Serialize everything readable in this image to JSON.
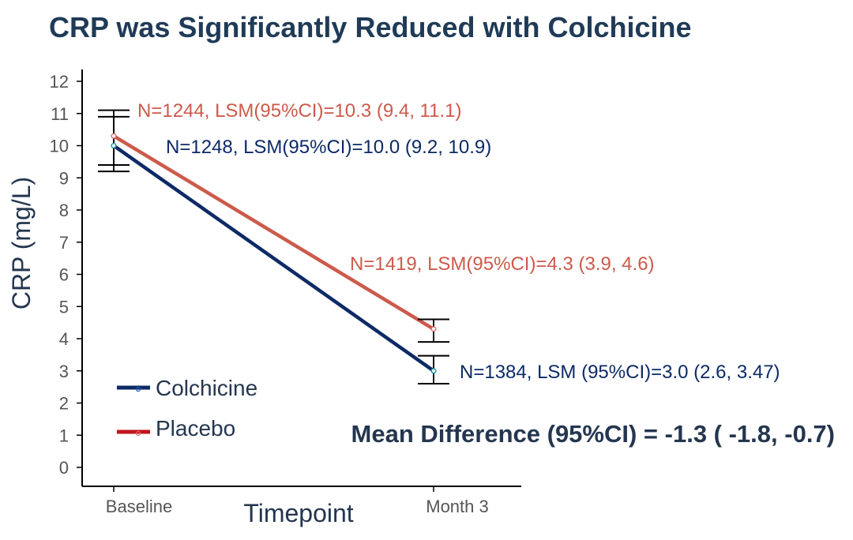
{
  "chart_data": {
    "type": "line",
    "title": "CRP was Significantly Reduced with Colchicine",
    "xlabel": "Timepoint",
    "ylabel": "CRP (mg/L)",
    "categories": [
      "Baseline",
      "Month 3"
    ],
    "ylim": [
      0,
      12
    ],
    "yticks": [
      "0",
      "1",
      "2",
      "3",
      "4",
      "5",
      "6",
      "7",
      "8",
      "9",
      "10",
      "11",
      "12"
    ],
    "grid": false,
    "legend_position": "bottom-left",
    "series": [
      {
        "name": "Colchicine",
        "color": "#0d2a66",
        "values": [
          10.0,
          3.0
        ],
        "ci_lower": [
          9.2,
          2.6
        ],
        "ci_upper": [
          10.9,
          3.47
        ],
        "annotations": [
          "N=1248, LSM(95%CI)=10.0 (9.2, 10.9)",
          "N=1384, LSM (95%CI)=3.0 (2.6, 3.47)"
        ]
      },
      {
        "name": "Placebo",
        "color": "#cc5a4b",
        "legend_color": "#c0141c",
        "values": [
          10.3,
          4.3
        ],
        "ci_lower": [
          9.4,
          3.9
        ],
        "ci_upper": [
          11.1,
          4.6
        ],
        "annotations": [
          "N=1244, LSM(95%CI)=10.3 (9.4, 11.1)",
          "N=1419, LSM(95%CI)=4.3 (3.9, 4.6)"
        ]
      }
    ],
    "mean_difference": "Mean Difference (95%CI) = -1.3 ( -1.8, -0.7)"
  }
}
